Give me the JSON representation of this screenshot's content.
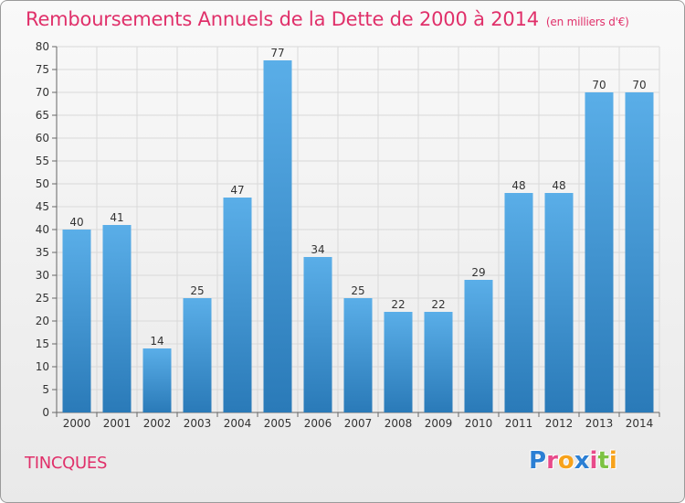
{
  "header": {
    "title": "Remboursements Annuels de la Dette de 2000 à 2014",
    "units": "(en milliers d'€)"
  },
  "footer": {
    "town": "TINCQUES",
    "logo": {
      "text": "Proxiti",
      "colors": [
        "#2b7fd4",
        "#e84a8a",
        "#f7a21b",
        "#2b7fd4",
        "#e84a8a",
        "#7cc242",
        "#f7a21b"
      ]
    }
  },
  "chart_data": {
    "type": "bar",
    "title": "Remboursements Annuels de la Dette de 2000 à 2014",
    "xlabel": "",
    "ylabel": "",
    "categories": [
      "2000",
      "2001",
      "2002",
      "2003",
      "2004",
      "2005",
      "2006",
      "2007",
      "2008",
      "2009",
      "2010",
      "2011",
      "2012",
      "2013",
      "2014"
    ],
    "values": [
      40,
      41,
      14,
      25,
      47,
      77,
      34,
      25,
      22,
      22,
      29,
      48,
      48,
      70,
      70
    ],
    "ylim": [
      0,
      80
    ],
    "yticks": [
      0,
      5,
      10,
      15,
      20,
      25,
      30,
      35,
      40,
      45,
      50,
      55,
      60,
      65,
      70,
      75,
      80
    ],
    "grid": true,
    "bar_color_top": "#5aaee8",
    "bar_color_bottom": "#2a7ab8"
  }
}
